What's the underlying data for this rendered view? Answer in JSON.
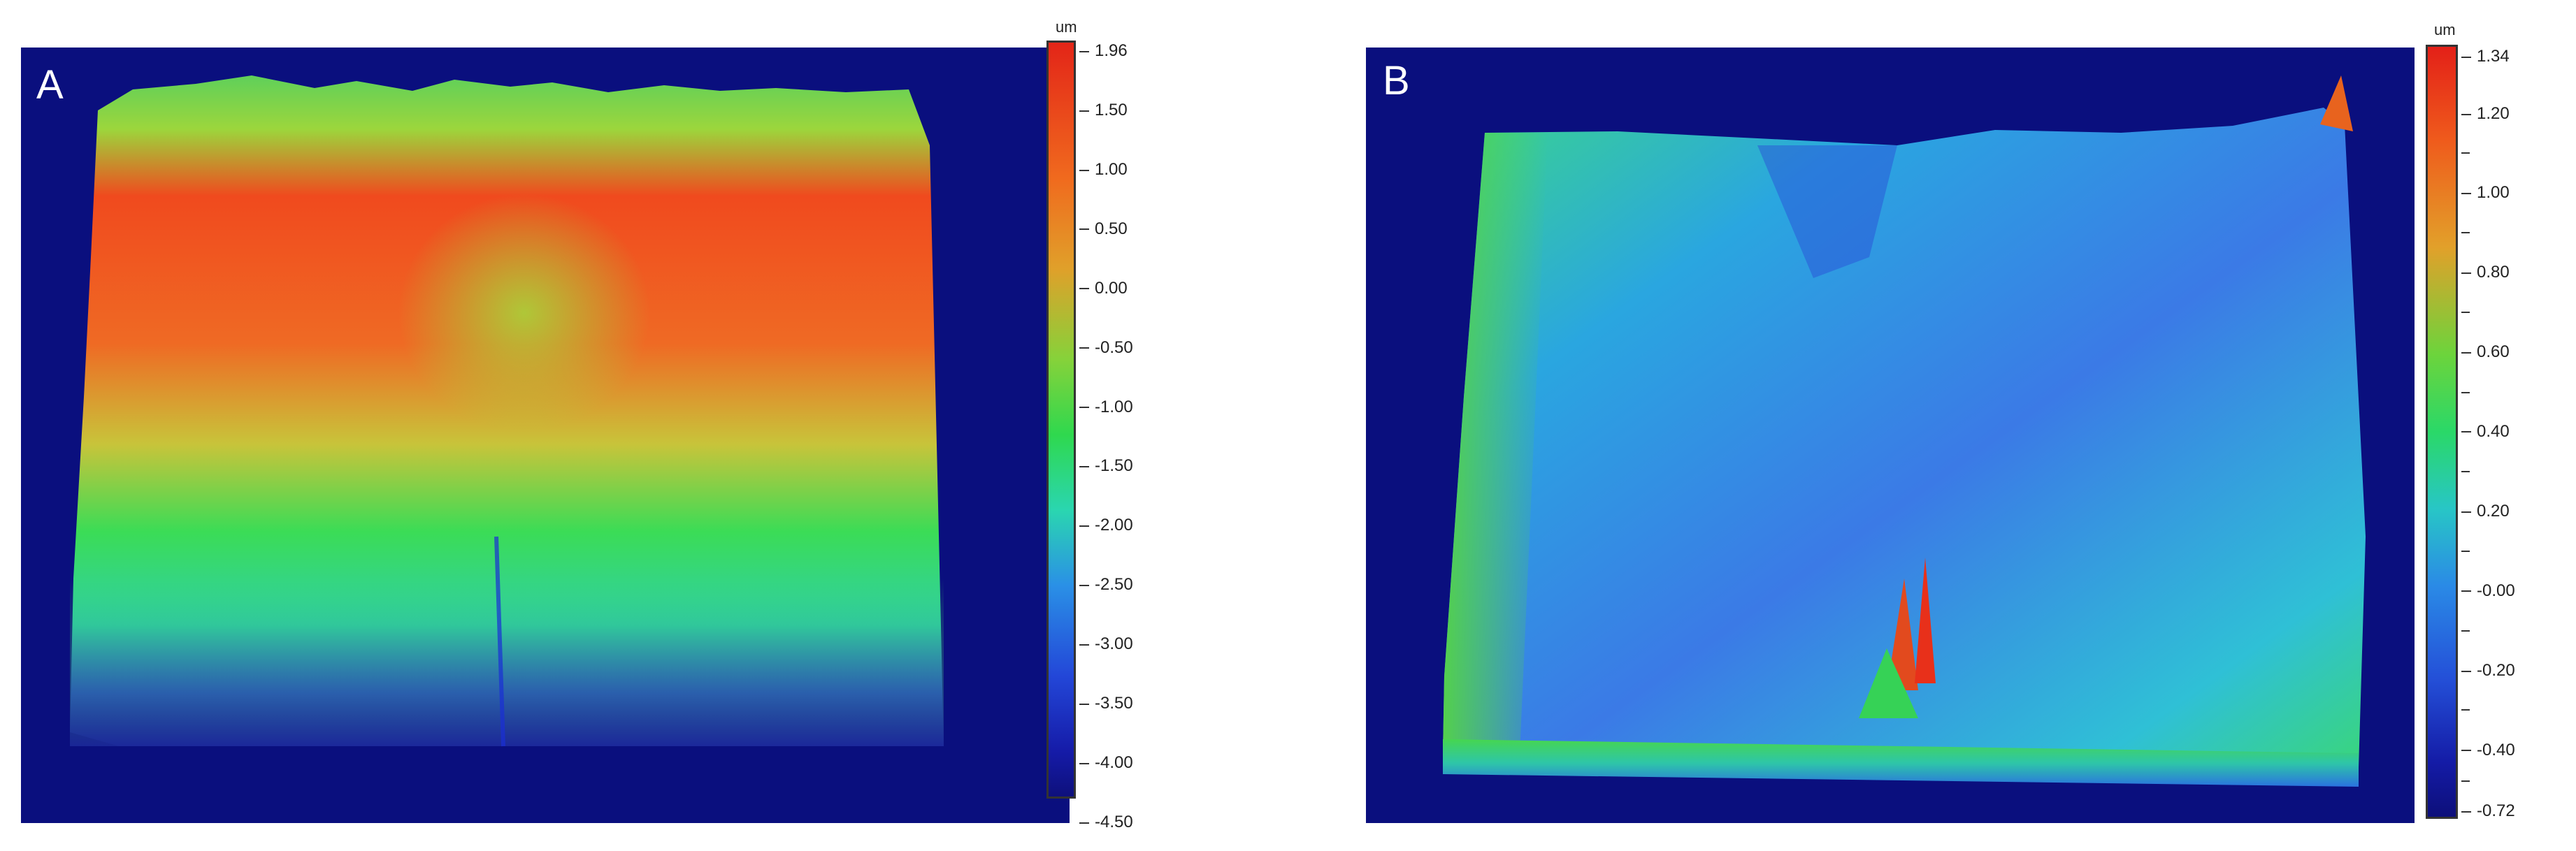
{
  "panel_a": {
    "label": "A",
    "colorbar": {
      "unit": "um",
      "ticks": [
        "1.96",
        "1.50",
        "1.00",
        "0.50",
        "0.00",
        "-0.50",
        "-1.00",
        "-1.50",
        "-2.00",
        "-2.50",
        "-3.00",
        "-3.50",
        "-4.00",
        "-4.50"
      ]
    }
  },
  "panel_b": {
    "label": "B",
    "colorbar": {
      "unit": "um",
      "ticks": [
        "1.34",
        "1.20",
        "1.00",
        "0.80",
        "0.60",
        "0.40",
        "0.20",
        "-0.00",
        "-0.20",
        "-0.40",
        "-0.72"
      ]
    }
  },
  "colors": {
    "background": "#0a0f7e",
    "high": "#e8301a",
    "mid": "#27d84a",
    "low": "#1a2fd6"
  }
}
